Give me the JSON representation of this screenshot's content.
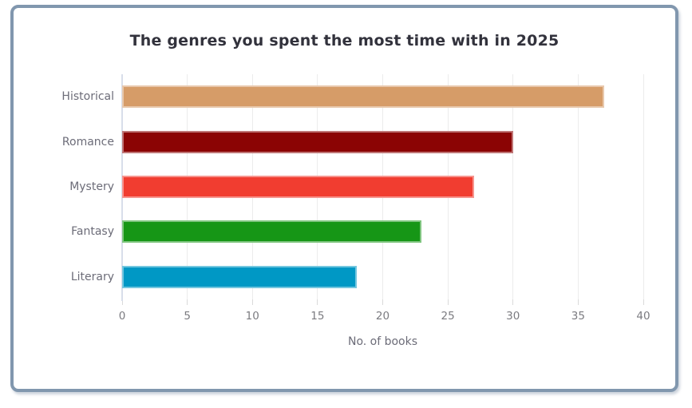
{
  "card": {
    "border_color": "#8197AE",
    "background_color": "#ffffff"
  },
  "chart_data": {
    "type": "bar",
    "orientation": "horizontal",
    "title": "The genres you spent the most time with in 2025",
    "categories": [
      "Historical",
      "Romance",
      "Mystery",
      "Fantasy",
      "Literary"
    ],
    "values": [
      37,
      30,
      27,
      23,
      18
    ],
    "bar_colors": [
      "#D69C68",
      "#8B0404",
      "#F13D30",
      "#169616",
      "#0098C5"
    ],
    "xlabel": "No. of books",
    "ylabel": "",
    "xlim": [
      0,
      40
    ],
    "x_ticks": [
      0,
      5,
      10,
      15,
      20,
      25,
      30,
      35,
      40
    ],
    "grid": "vertical-only",
    "legend": "none",
    "colors": {
      "title_text": "#32323C",
      "category_text": "#6C6C78",
      "tick_text": "#7B7B80",
      "gridline": "#ECECEC",
      "axis_line": "#D8DEEA"
    }
  }
}
